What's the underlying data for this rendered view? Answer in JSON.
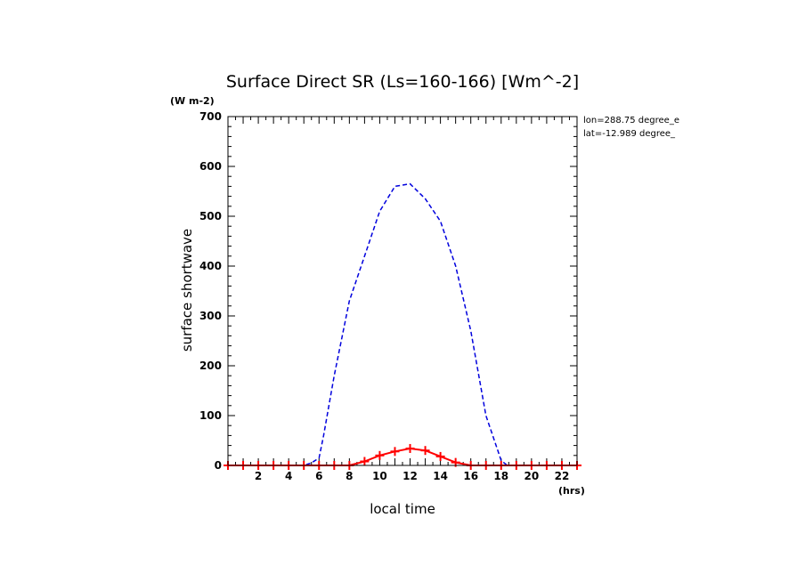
{
  "chart_data": {
    "type": "line",
    "title": "Surface Direct SR (Ls=160-166) [Wm^-2]",
    "y_unit": "(W m-2)",
    "x_unit": "(hrs)",
    "xlabel": "local time",
    "ylabel": "surface shortwave",
    "annotations": [
      "lon=288.75 degree_e",
      "lat=-12.989 degree_"
    ],
    "xlim": [
      0,
      23
    ],
    "ylim": [
      0,
      700
    ],
    "x_ticks": [
      2,
      4,
      6,
      8,
      10,
      12,
      14,
      16,
      18,
      20,
      22
    ],
    "y_ticks": [
      0,
      100,
      200,
      300,
      400,
      500,
      600,
      700
    ],
    "series": [
      {
        "color": "#0000dd",
        "style": "dashed",
        "x": [
          0,
          1,
          2,
          3,
          4,
          5,
          5.5,
          6,
          6.3,
          7,
          8,
          9,
          10,
          11,
          12,
          13,
          14,
          15,
          16,
          17,
          18,
          18.4,
          19,
          20,
          21,
          22,
          23
        ],
        "y": [
          0,
          0,
          0,
          0,
          0,
          0,
          5,
          15,
          60,
          180,
          330,
          420,
          510,
          560,
          565,
          535,
          490,
          400,
          270,
          100,
          10,
          0,
          0,
          0,
          0,
          0,
          0
        ]
      },
      {
        "color": "#ff0000",
        "style": "solid-markers",
        "x": [
          0,
          1,
          2,
          3,
          4,
          5,
          6,
          7,
          8,
          9,
          10,
          11,
          12,
          13,
          14,
          15,
          16,
          17,
          18,
          19,
          20,
          21,
          22,
          23
        ],
        "y": [
          0,
          0,
          0,
          0,
          0,
          0,
          0,
          0,
          0,
          8,
          20,
          28,
          34,
          30,
          18,
          6,
          0,
          0,
          0,
          0,
          0,
          0,
          0,
          0
        ]
      }
    ]
  }
}
